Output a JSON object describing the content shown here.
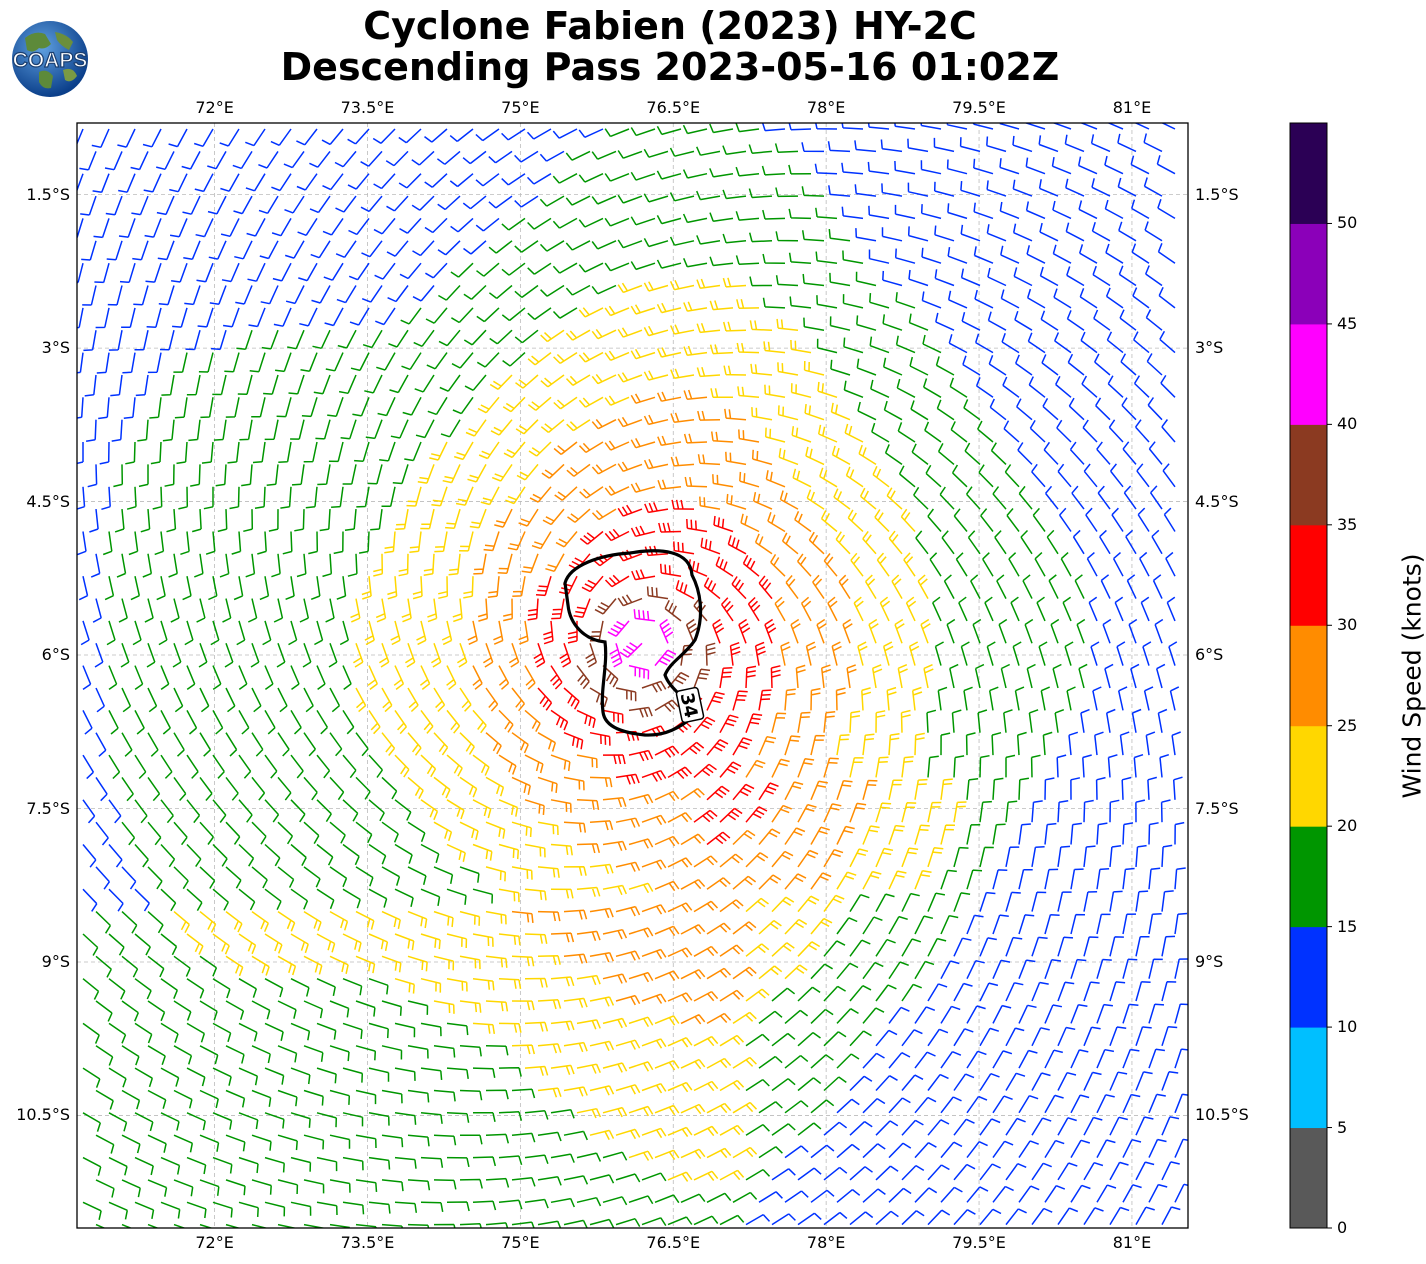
{
  "title": {
    "line1": "Cyclone Fabien (2023) HY-2C",
    "line2": "Descending Pass 2023-05-16 01:02Z"
  },
  "logo": {
    "text": "COAPS",
    "icon": "globe-logo-icon"
  },
  "map": {
    "lon_ticks": [
      "72°E",
      "73.5°E",
      "75°E",
      "76.5°E",
      "78°E",
      "79.5°E",
      "81°E"
    ],
    "lat_ticks": [
      "1.5°S",
      "3°S",
      "4.5°S",
      "6°S",
      "7.5°S",
      "9°S",
      "10.5°S"
    ],
    "lon_range": [
      70.65,
      81.55
    ],
    "lat_range": [
      -0.8,
      -11.6
    ],
    "center": {
      "lon": 76.2,
      "lat": -5.9
    },
    "contour_label": "34",
    "grid": true
  },
  "colorbar": {
    "label": "Wind Speed (knots)",
    "ticks": [
      "0",
      "5",
      "10",
      "15",
      "20",
      "25",
      "30",
      "35",
      "40",
      "45",
      "50"
    ],
    "bins": [
      {
        "min": 0,
        "max": 5,
        "color": "#595959"
      },
      {
        "min": 5,
        "max": 10,
        "color": "#00bfff"
      },
      {
        "min": 10,
        "max": 15,
        "color": "#0032ff"
      },
      {
        "min": 15,
        "max": 20,
        "color": "#009600"
      },
      {
        "min": 20,
        "max": 25,
        "color": "#ffd700"
      },
      {
        "min": 25,
        "max": 30,
        "color": "#ff8c00"
      },
      {
        "min": 30,
        "max": 35,
        "color": "#ff0000"
      },
      {
        "min": 35,
        "max": 40,
        "color": "#8b3a21"
      },
      {
        "min": 40,
        "max": 45,
        "color": "#ff00ff"
      },
      {
        "min": 45,
        "max": 50,
        "color": "#8b00b9"
      },
      {
        "min": 50,
        "max": 55,
        "color": "#2b0055"
      }
    ]
  }
}
